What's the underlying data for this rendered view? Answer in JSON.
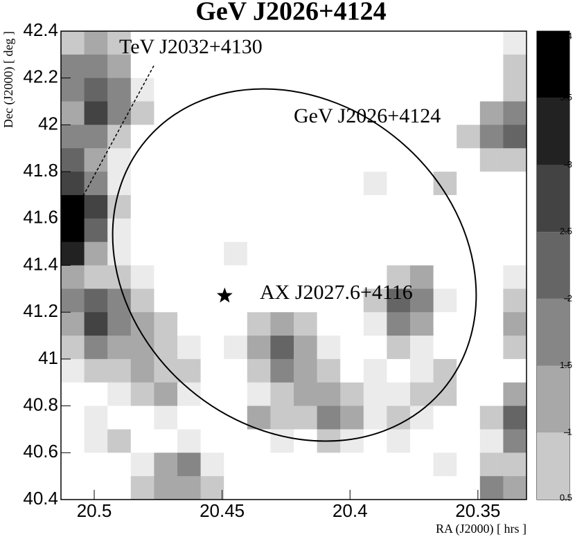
{
  "chart_data": {
    "type": "heatmap",
    "title": "GeV J2026+4124",
    "x_label": "RA (J2000) [ hrs ]",
    "y_label": "Dec (J2000) [ deg ]",
    "xlim": [
      20.513,
      20.331
    ],
    "xticks": [
      20.5,
      20.45,
      20.4,
      20.35
    ],
    "ylim": [
      40.4,
      42.4
    ],
    "yticks": [
      40.4,
      40.6,
      40.8,
      41,
      41.2,
      41.4,
      41.6,
      41.8,
      42,
      42.2,
      42.4
    ],
    "zlim": [
      0.5,
      4
    ],
    "zticks": [
      0.5,
      1,
      1.5,
      2,
      2.5,
      3,
      3.5,
      4
    ],
    "annotations": [
      "TeV J2032+4130",
      "GeV J2026+4124",
      "AX J2027.6+4116"
    ],
    "marker": {
      "x": 20.449,
      "y": 41.27
    },
    "z": [
      [
        1,
        1.5,
        1,
        0,
        0,
        0,
        0,
        0,
        0,
        0,
        0,
        0,
        0,
        0,
        0,
        0,
        0,
        0,
        0,
        0.5
      ],
      [
        2,
        2,
        1.5,
        0,
        0,
        0,
        0,
        0,
        0,
        0,
        0,
        0,
        0,
        0,
        0,
        0,
        0,
        0,
        0,
        1
      ],
      [
        2,
        2.5,
        2,
        0.5,
        0,
        0,
        0,
        0,
        0,
        0,
        0,
        0,
        0,
        0,
        0,
        0,
        0,
        0,
        0,
        1
      ],
      [
        1.5,
        3,
        2,
        1,
        0,
        0,
        0,
        0,
        0,
        0,
        0,
        0,
        0,
        0,
        0,
        0,
        0,
        0,
        1.5,
        2
      ],
      [
        2,
        2,
        1,
        0,
        0,
        0,
        0,
        0,
        0,
        0,
        0,
        0,
        0,
        0,
        0,
        0,
        0,
        1,
        2,
        2.5
      ],
      [
        2.5,
        1.5,
        0.5,
        0,
        0,
        0,
        0,
        0,
        0,
        0,
        0,
        0,
        0,
        0,
        0,
        0,
        0,
        0,
        1,
        1
      ],
      [
        3,
        2,
        0.5,
        0,
        0,
        0,
        0,
        0,
        0,
        0,
        0,
        0,
        0,
        0.5,
        0,
        0,
        1,
        0,
        0,
        0
      ],
      [
        4,
        3,
        1,
        0,
        0,
        0,
        0,
        0,
        0,
        0,
        0,
        0,
        0,
        0,
        0,
        0,
        0,
        0,
        0,
        0
      ],
      [
        4,
        2.5,
        0.5,
        0,
        0,
        0,
        0,
        0,
        0,
        0,
        0,
        0,
        0,
        0,
        0,
        0,
        0,
        0,
        0,
        0
      ],
      [
        3.5,
        1.5,
        0.5,
        0,
        0,
        0,
        0,
        0.5,
        0,
        0,
        0,
        0,
        0,
        0,
        0,
        0,
        0,
        0,
        0,
        0
      ],
      [
        1.5,
        1,
        1,
        0.5,
        0,
        0,
        0,
        0,
        0,
        0,
        0,
        0,
        0,
        0,
        1,
        1.5,
        0,
        0,
        0,
        0.5
      ],
      [
        2,
        2.5,
        2,
        1,
        0,
        0,
        0,
        0,
        0,
        0,
        0,
        0,
        0,
        1,
        2.5,
        2,
        0.5,
        0,
        0,
        1
      ],
      [
        1.5,
        3,
        2,
        1.5,
        1,
        0,
        0,
        0,
        1,
        1.5,
        1,
        0,
        0,
        0.5,
        2,
        1.5,
        0,
        0,
        0,
        1.5
      ],
      [
        1,
        2,
        1.5,
        1.5,
        1,
        0.5,
        0,
        0.5,
        1.5,
        2.5,
        1.5,
        0.5,
        0,
        0,
        1,
        0.5,
        0,
        0,
        0,
        1
      ],
      [
        0.5,
        1,
        1,
        1.5,
        1,
        1,
        0,
        0,
        1,
        2,
        1.5,
        1,
        0,
        0.5,
        0,
        0.5,
        1,
        0,
        0,
        0
      ],
      [
        0,
        0,
        0.5,
        1,
        1.5,
        0.5,
        0,
        0,
        0.5,
        1,
        1.5,
        1.5,
        1,
        0.5,
        0.5,
        1,
        1,
        0,
        0,
        1.5
      ],
      [
        0,
        0.5,
        0,
        0,
        0.5,
        0,
        0,
        0,
        1.5,
        1,
        1,
        2,
        1.5,
        0.5,
        1,
        0.5,
        0,
        0,
        1,
        2.5
      ],
      [
        0,
        0.5,
        1,
        0,
        0,
        0.5,
        0,
        0,
        0,
        0.5,
        0,
        1,
        0.5,
        0,
        0.5,
        0,
        0,
        0,
        0.5,
        2
      ],
      [
        0,
        0,
        0,
        0.5,
        1.5,
        2,
        0.5,
        0,
        0,
        0,
        0,
        0,
        0,
        0,
        0,
        0,
        0.5,
        0,
        1,
        1
      ],
      [
        0,
        0,
        0,
        1,
        1.5,
        1.5,
        1,
        0,
        0,
        0,
        0,
        0,
        0,
        0,
        0,
        0,
        0,
        0,
        2,
        1.5
      ]
    ]
  }
}
